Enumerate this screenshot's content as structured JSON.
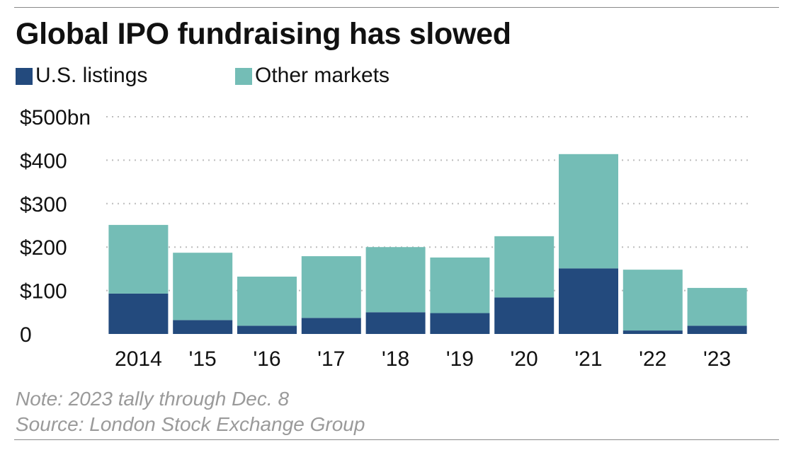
{
  "title": "Global IPO fundraising has slowed",
  "legend": [
    {
      "label": "U.S. listings",
      "color": "#234a7d"
    },
    {
      "label": "Other markets",
      "color": "#74bdb6"
    }
  ],
  "chart_data": {
    "type": "bar",
    "stacked": true,
    "categories": [
      "2014",
      "'15",
      "'16",
      "'17",
      "'18",
      "'19",
      "'20",
      "'21",
      "'22",
      "'23"
    ],
    "series": [
      {
        "name": "U.S. listings",
        "color": "#234a7d",
        "values": [
          93,
          32,
          19,
          37,
          50,
          48,
          84,
          151,
          8,
          19
        ]
      },
      {
        "name": "Other markets",
        "color": "#74bdb6",
        "values": [
          158,
          155,
          113,
          142,
          150,
          128,
          141,
          263,
          140,
          87
        ]
      }
    ],
    "ylim": [
      0,
      500
    ],
    "yticks": [
      0,
      100,
      200,
      300,
      400,
      500
    ],
    "ytick_labels": [
      "0",
      "$100",
      "$200",
      "$300",
      "$400",
      "$500bn"
    ],
    "grid": "dotted horizontal"
  },
  "notes": {
    "note": "Note: 2023 tally through Dec. 8",
    "source": "Source: London Stock Exchange Group"
  }
}
